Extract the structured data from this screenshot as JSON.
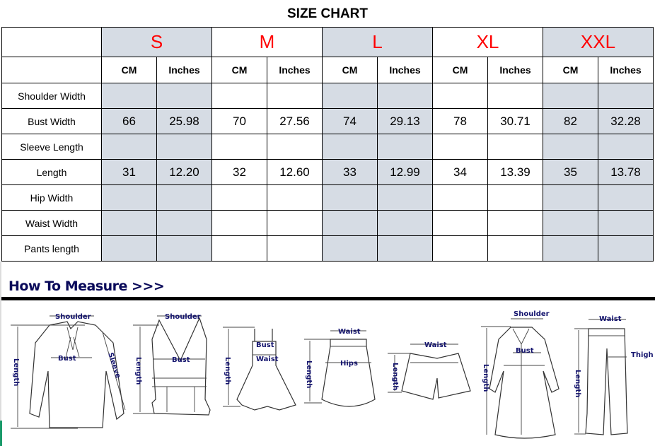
{
  "title": "SIZE CHART",
  "sizes": [
    "S",
    "M",
    "L",
    "XL",
    "XXL"
  ],
  "shaded_sizes": [
    "S",
    "L",
    "XXL"
  ],
  "units": [
    "CM",
    "Inches"
  ],
  "colors": {
    "size_label": "#ff0000",
    "shaded": "#d6dce4",
    "heading": "#0a0a5a"
  },
  "rows": [
    {
      "label": "Shoulder Width",
      "values": [
        "",
        "",
        "",
        "",
        "",
        "",
        "",
        "",
        "",
        ""
      ]
    },
    {
      "label": "Bust Width",
      "values": [
        "66",
        "25.98",
        "70",
        "27.56",
        "74",
        "29.13",
        "78",
        "30.71",
        "82",
        "32.28"
      ]
    },
    {
      "label": "Sleeve Length",
      "values": [
        "",
        "",
        "",
        "",
        "",
        "",
        "",
        "",
        "",
        ""
      ]
    },
    {
      "label": "Length",
      "values": [
        "31",
        "12.20",
        "32",
        "12.60",
        "33",
        "12.99",
        "34",
        "13.39",
        "35",
        "13.78"
      ]
    },
    {
      "label": "Hip Width",
      "values": [
        "",
        "",
        "",
        "",
        "",
        "",
        "",
        "",
        "",
        ""
      ]
    },
    {
      "label": "Waist Width",
      "values": [
        "",
        "",
        "",
        "",
        "",
        "",
        "",
        "",
        "",
        ""
      ]
    },
    {
      "label": "Pants length",
      "values": [
        "",
        "",
        "",
        "",
        "",
        "",
        "",
        "",
        "",
        ""
      ]
    }
  ],
  "how_to_measure": {
    "heading": "How To Measure >>>",
    "labels": {
      "shoulder": "Shoulder",
      "bust": "Bust",
      "sleeve": "Sleeve",
      "length": "Length",
      "waist": "Waist",
      "hips": "Hips",
      "thigh": "Thigh"
    }
  }
}
